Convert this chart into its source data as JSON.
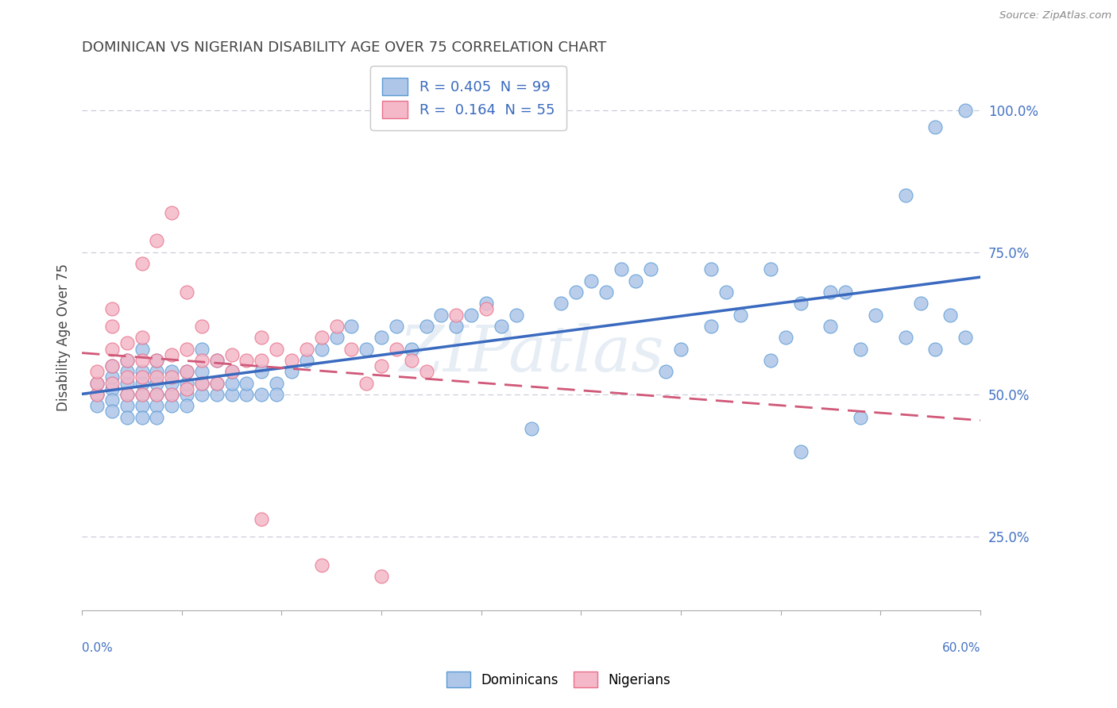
{
  "title": "DOMINICAN VS NIGERIAN DISABILITY AGE OVER 75 CORRELATION CHART",
  "source": "Source: ZipAtlas.com",
  "ylabel": "Disability Age Over 75",
  "yticks": [
    0.25,
    0.5,
    0.75,
    1.0
  ],
  "ytick_labels": [
    "25.0%",
    "50.0%",
    "75.0%",
    "100.0%"
  ],
  "xmin": 0.0,
  "xmax": 0.6,
  "ymin": 0.12,
  "ymax": 1.08,
  "legend_blue_r": "0.405",
  "legend_blue_n": "99",
  "legend_pink_r": "0.164",
  "legend_pink_n": "55",
  "blue_color": "#aec6e8",
  "blue_edge": "#5b9bd5",
  "pink_color": "#f4b8c8",
  "pink_edge": "#e8708a",
  "trend_blue": "#3a6abf",
  "trend_pink": "#d05878",
  "watermark": "ZIPatlas",
  "blue_scatter_x": [
    0.01,
    0.01,
    0.01,
    0.02,
    0.02,
    0.02,
    0.02,
    0.02,
    0.03,
    0.03,
    0.03,
    0.03,
    0.03,
    0.03,
    0.04,
    0.04,
    0.04,
    0.04,
    0.04,
    0.04,
    0.05,
    0.05,
    0.05,
    0.05,
    0.05,
    0.05,
    0.06,
    0.06,
    0.06,
    0.06,
    0.07,
    0.07,
    0.07,
    0.07,
    0.08,
    0.08,
    0.08,
    0.08,
    0.09,
    0.09,
    0.09,
    0.1,
    0.1,
    0.1,
    0.11,
    0.11,
    0.12,
    0.12,
    0.13,
    0.13,
    0.14,
    0.15,
    0.16,
    0.17,
    0.18,
    0.19,
    0.2,
    0.21,
    0.22,
    0.23,
    0.24,
    0.25,
    0.26,
    0.27,
    0.28,
    0.29,
    0.3,
    0.32,
    0.33,
    0.34,
    0.35,
    0.36,
    0.37,
    0.38,
    0.4,
    0.42,
    0.43,
    0.44,
    0.46,
    0.47,
    0.48,
    0.5,
    0.51,
    0.52,
    0.53,
    0.55,
    0.56,
    0.57,
    0.58,
    0.59,
    0.55,
    0.48,
    0.42,
    0.57,
    0.52,
    0.39,
    0.46,
    0.59,
    0.5
  ],
  "blue_scatter_y": [
    0.5,
    0.52,
    0.48,
    0.51,
    0.53,
    0.49,
    0.55,
    0.47,
    0.5,
    0.52,
    0.48,
    0.54,
    0.46,
    0.56,
    0.5,
    0.52,
    0.48,
    0.54,
    0.46,
    0.58,
    0.5,
    0.52,
    0.48,
    0.54,
    0.56,
    0.46,
    0.5,
    0.52,
    0.54,
    0.48,
    0.5,
    0.52,
    0.54,
    0.48,
    0.5,
    0.52,
    0.54,
    0.58,
    0.5,
    0.52,
    0.56,
    0.5,
    0.52,
    0.54,
    0.5,
    0.52,
    0.54,
    0.5,
    0.52,
    0.5,
    0.54,
    0.56,
    0.58,
    0.6,
    0.62,
    0.58,
    0.6,
    0.62,
    0.58,
    0.62,
    0.64,
    0.62,
    0.64,
    0.66,
    0.62,
    0.64,
    0.44,
    0.66,
    0.68,
    0.7,
    0.68,
    0.72,
    0.7,
    0.72,
    0.58,
    0.62,
    0.68,
    0.64,
    0.72,
    0.6,
    0.66,
    0.62,
    0.68,
    0.58,
    0.64,
    0.6,
    0.66,
    0.58,
    0.64,
    0.6,
    0.85,
    0.4,
    0.72,
    0.97,
    0.46,
    0.54,
    0.56,
    1.0,
    0.68
  ],
  "pink_scatter_x": [
    0.01,
    0.01,
    0.01,
    0.02,
    0.02,
    0.02,
    0.02,
    0.02,
    0.03,
    0.03,
    0.03,
    0.03,
    0.04,
    0.04,
    0.04,
    0.04,
    0.05,
    0.05,
    0.05,
    0.06,
    0.06,
    0.06,
    0.07,
    0.07,
    0.07,
    0.08,
    0.08,
    0.09,
    0.09,
    0.1,
    0.1,
    0.11,
    0.12,
    0.12,
    0.13,
    0.14,
    0.15,
    0.16,
    0.17,
    0.18,
    0.19,
    0.2,
    0.21,
    0.22,
    0.23,
    0.25,
    0.27,
    0.04,
    0.05,
    0.06,
    0.07,
    0.08,
    0.12,
    0.16,
    0.2
  ],
  "pink_scatter_y": [
    0.5,
    0.52,
    0.54,
    0.52,
    0.55,
    0.58,
    0.62,
    0.65,
    0.5,
    0.53,
    0.56,
    0.59,
    0.5,
    0.53,
    0.56,
    0.6,
    0.5,
    0.53,
    0.56,
    0.5,
    0.53,
    0.57,
    0.51,
    0.54,
    0.58,
    0.52,
    0.56,
    0.52,
    0.56,
    0.54,
    0.57,
    0.56,
    0.56,
    0.6,
    0.58,
    0.56,
    0.58,
    0.6,
    0.62,
    0.58,
    0.52,
    0.55,
    0.58,
    0.56,
    0.54,
    0.64,
    0.65,
    0.73,
    0.77,
    0.82,
    0.68,
    0.62,
    0.28,
    0.2,
    0.18
  ]
}
